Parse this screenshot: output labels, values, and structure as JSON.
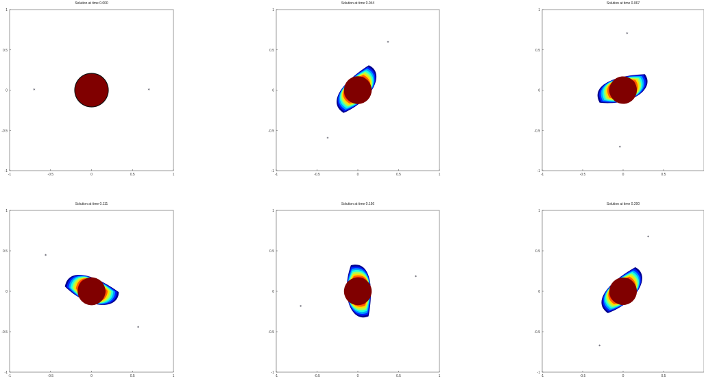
{
  "chart_data": [
    {
      "type": "heatmap",
      "title": "Solution at time 0.000",
      "xlim": [
        -1,
        1
      ],
      "ylim": [
        -1,
        1
      ],
      "xticks": [
        "-1",
        "-0.5",
        "0",
        "0.5",
        "1"
      ],
      "yticks": [
        "1",
        "0.5",
        "0",
        "-0.5",
        "-1"
      ],
      "blob": {
        "shape": "disk",
        "angle": 0
      },
      "markers": [
        {
          "x": -0.7,
          "y": 0.0
        },
        {
          "x": 0.7,
          "y": 0.0
        }
      ]
    },
    {
      "type": "heatmap",
      "title": "Solution at time 0.044",
      "xlim": [
        -1,
        1
      ],
      "ylim": [
        -1,
        1
      ],
      "xticks": [
        "-1",
        "-0.5",
        "0",
        "0.5",
        "1"
      ],
      "yticks": [
        "1",
        "0.5",
        "0",
        "-0.5",
        "-1"
      ],
      "blob": {
        "shape": "swirl",
        "angle": -58
      },
      "markers": [
        {
          "x": 0.37,
          "y": 0.59
        },
        {
          "x": -0.37,
          "y": -0.6
        }
      ]
    },
    {
      "type": "heatmap",
      "title": "Solution at time 0.067",
      "xlim": [
        -1,
        1
      ],
      "ylim": [
        -1,
        1
      ],
      "xticks": [
        "-1",
        "-0.5",
        "0",
        "0.5"
      ],
      "yticks": [
        "1",
        "0.5",
        "0",
        "-0.5",
        "-1"
      ],
      "blob": {
        "shape": "swirl",
        "angle": -28
      },
      "markers": [
        {
          "x": 0.05,
          "y": 0.7
        },
        {
          "x": -0.04,
          "y": -0.71
        }
      ]
    },
    {
      "type": "heatmap",
      "title": "Solution at time 0.111",
      "xlim": [
        -1,
        1
      ],
      "ylim": [
        -1,
        1
      ],
      "xticks": [
        "-1",
        "-0.5",
        "0",
        "0.5",
        "1"
      ],
      "yticks": [
        "1",
        "0.5",
        "0",
        "-0.5",
        "-1"
      ],
      "blob": {
        "shape": "swirl",
        "angle": 10
      },
      "markers": [
        {
          "x": -0.56,
          "y": 0.44
        },
        {
          "x": 0.57,
          "y": -0.45
        }
      ]
    },
    {
      "type": "heatmap",
      "title": "Solution at time 0.156",
      "xlim": [
        -1,
        1
      ],
      "ylim": [
        -1,
        1
      ],
      "xticks": [
        "-1",
        "-0.5",
        "0",
        "0.5",
        "1"
      ],
      "yticks": [
        "1",
        "0.5",
        "0",
        "-0.5",
        "-1"
      ],
      "blob": {
        "shape": "swirl",
        "angle": 75
      },
      "markers": [
        {
          "x": 0.71,
          "y": 0.18
        },
        {
          "x": -0.7,
          "y": -0.19
        }
      ]
    },
    {
      "type": "heatmap",
      "title": "Solution at time 0.200",
      "xlim": [
        -1,
        1
      ],
      "ylim": [
        -1,
        1
      ],
      "xticks": [
        "-1",
        "-0.5",
        "0",
        "0.5"
      ],
      "yticks": [
        "1",
        "0.5",
        "0",
        "-0.5",
        "-1"
      ],
      "blob": {
        "shape": "swirl",
        "angle": -55
      },
      "markers": [
        {
          "x": 0.31,
          "y": 0.67
        },
        {
          "x": -0.29,
          "y": -0.68
        }
      ]
    }
  ],
  "colormap": [
    "#00008f",
    "#0020ff",
    "#00a0ff",
    "#20ffdf",
    "#a0ff60",
    "#ffdf00",
    "#ff6000",
    "#df0000",
    "#800000"
  ]
}
